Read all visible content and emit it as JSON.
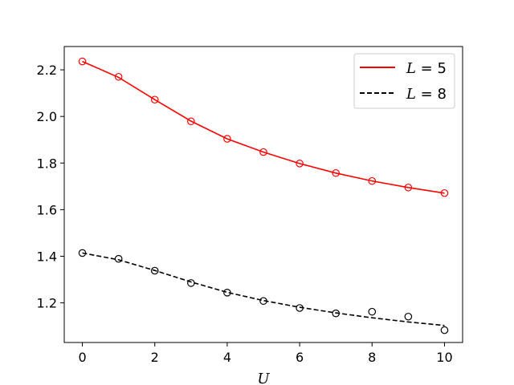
{
  "chart_data": {
    "type": "line",
    "xlabel": "U",
    "ylabel": "",
    "title": "",
    "xlim": [
      -0.5,
      10.5
    ],
    "ylim": [
      1.03,
      2.3
    ],
    "xticks": [
      0,
      2,
      4,
      6,
      8,
      10
    ],
    "xtick_labels": [
      "0",
      "2",
      "4",
      "6",
      "8",
      "10"
    ],
    "yticks": [
      1.2,
      1.4,
      1.6,
      1.8,
      2.0,
      2.2
    ],
    "ytick_labels": [
      "1.2",
      "1.4",
      "1.6",
      "1.8",
      "2.0",
      "2.2"
    ],
    "legend_position": "top-right",
    "series": [
      {
        "name": "L = 5",
        "legend_var": "L",
        "legend_rest": " = 5",
        "color": "#ff0000",
        "line_style": "solid",
        "line_x": [
          0,
          1,
          2,
          3,
          4,
          5,
          6,
          7,
          8,
          9,
          10
        ],
        "line_y": [
          2.236,
          2.168,
          2.072,
          1.98,
          1.904,
          1.847,
          1.798,
          1.757,
          1.723,
          1.695,
          1.671
        ],
        "points_x": [
          0,
          1,
          2,
          3,
          4,
          5,
          6,
          7,
          8,
          9,
          10
        ],
        "points_y": [
          2.236,
          2.17,
          2.072,
          1.979,
          1.904,
          1.847,
          1.798,
          1.757,
          1.723,
          1.695,
          1.671
        ]
      },
      {
        "name": "L = 8",
        "legend_var": "L",
        "legend_rest": " = 8",
        "color": "#000000",
        "line_style": "dashed",
        "line_x": [
          0,
          1,
          2,
          3,
          4,
          5,
          6,
          7,
          8,
          9,
          10
        ],
        "line_y": [
          1.414,
          1.385,
          1.339,
          1.29,
          1.245,
          1.21,
          1.181,
          1.157,
          1.136,
          1.118,
          1.103
        ],
        "points_x": [
          0,
          1,
          2,
          3,
          4,
          5,
          6,
          7,
          8,
          9,
          10
        ],
        "points_y": [
          1.414,
          1.389,
          1.338,
          1.285,
          1.244,
          1.208,
          1.178,
          1.155,
          1.162,
          1.141,
          1.083
        ]
      }
    ]
  }
}
